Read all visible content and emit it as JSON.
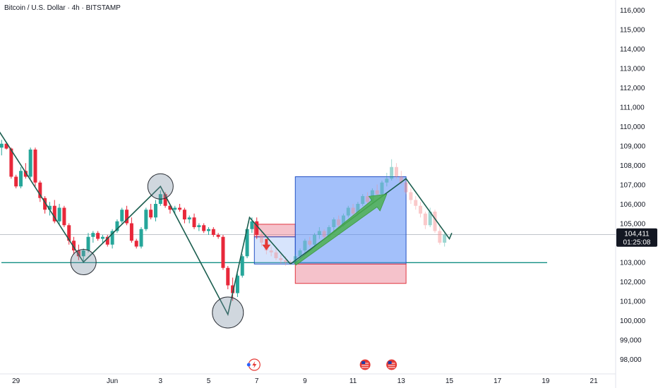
{
  "title": "Bitcoin / U.S. Dollar · 4h · BITSTAMP",
  "chart_data": {
    "type": "candlestick",
    "symbol": "BTC/USD",
    "timeframe": "4h",
    "y_ticks": [
      98000,
      99000,
      100000,
      101000,
      102000,
      103000,
      104000,
      105000,
      106000,
      107000,
      108000,
      109000,
      110000,
      111000,
      112000,
      113000,
      114000,
      115000,
      116000
    ],
    "y_tick_labels": [
      "98,000",
      "99,000",
      "100,000",
      "101,000",
      "102,000",
      "103,000",
      "104,000",
      "105,000",
      "106,000",
      "107,000",
      "108,000",
      "109,000",
      "110,000",
      "111,000",
      "112,000",
      "113,000",
      "114,000",
      "115,000",
      "116,000"
    ],
    "x_tick_labels": [
      "29",
      "Jun",
      "3",
      "5",
      "7",
      "9",
      "11",
      "13",
      "15",
      "17",
      "19",
      "21"
    ],
    "x_tick_days": [
      -3,
      1,
      3,
      5,
      7,
      9,
      11,
      13,
      15,
      17,
      19,
      21
    ],
    "current_price": "104,411",
    "countdown": "01:25:08",
    "support_level": 102970,
    "colors": {
      "up": "#26a69a",
      "down": "#ef5350",
      "down_dark": "#d32f2f",
      "pattern": "#1b5e4f",
      "accent": "#2962ff"
    },
    "candles": [
      [
        -4.2,
        110000,
        110700,
        109800,
        110400
      ],
      [
        -4.0,
        110400,
        110450,
        109500,
        109700
      ],
      [
        -3.8,
        109700,
        109800,
        108600,
        108900
      ],
      [
        -3.6,
        108900,
        109300,
        108500,
        109100
      ],
      [
        -3.4,
        109100,
        109200,
        108800,
        108850
      ],
      [
        -3.2,
        108850,
        108900,
        107300,
        107400
      ],
      [
        -3.0,
        107400,
        107500,
        106800,
        106900
      ],
      [
        -2.8,
        106900,
        107900,
        106800,
        107700
      ],
      [
        -2.6,
        107700,
        108100,
        107300,
        107400
      ],
      [
        -2.4,
        107400,
        108900,
        107300,
        108800
      ],
      [
        -2.2,
        108800,
        108900,
        106900,
        107100
      ],
      [
        -2.0,
        107100,
        107200,
        106100,
        106300
      ],
      [
        -1.8,
        106300,
        106400,
        105500,
        105700
      ],
      [
        -1.6,
        105700,
        106100,
        105400,
        105900
      ],
      [
        -1.4,
        105900,
        106200,
        105000,
        105100
      ],
      [
        -1.2,
        105100,
        106000,
        104900,
        105800
      ],
      [
        -1.0,
        105800,
        105900,
        104800,
        104900
      ],
      [
        -0.8,
        104900,
        105000,
        103900,
        104100
      ],
      [
        -0.6,
        104100,
        104300,
        103400,
        103600
      ],
      [
        -0.4,
        103600,
        103900,
        103100,
        103300
      ],
      [
        -0.2,
        103300,
        103700,
        103000,
        103600
      ],
      [
        0.0,
        103600,
        104500,
        103500,
        104300
      ],
      [
        0.2,
        104300,
        104600,
        104000,
        104500
      ],
      [
        0.4,
        104500,
        104600,
        104100,
        104200
      ],
      [
        0.6,
        104200,
        104400,
        104000,
        104300
      ],
      [
        0.8,
        104300,
        104400,
        103800,
        103900
      ],
      [
        1.0,
        103900,
        104700,
        103700,
        104600
      ],
      [
        1.2,
        104600,
        105200,
        104500,
        105100
      ],
      [
        1.4,
        105100,
        105800,
        105000,
        105700
      ],
      [
        1.6,
        105700,
        105900,
        104900,
        105000
      ],
      [
        1.8,
        105000,
        105300,
        104000,
        104100
      ],
      [
        2.0,
        104100,
        104200,
        103700,
        103800
      ],
      [
        2.2,
        103800,
        104800,
        103700,
        104700
      ],
      [
        2.4,
        104700,
        105800,
        104600,
        105700
      ],
      [
        2.6,
        105700,
        106000,
        105200,
        105300
      ],
      [
        2.8,
        105300,
        106200,
        105100,
        106000
      ],
      [
        3.0,
        106000,
        106700,
        105900,
        106500
      ],
      [
        3.2,
        106500,
        106600,
        105800,
        105900
      ],
      [
        3.4,
        105900,
        106000,
        105500,
        105700
      ],
      [
        3.6,
        105700,
        105900,
        105500,
        105800
      ],
      [
        3.8,
        105800,
        106000,
        105600,
        105700
      ],
      [
        4.0,
        105700,
        105800,
        105000,
        105200
      ],
      [
        4.2,
        105200,
        105400,
        105000,
        105300
      ],
      [
        4.4,
        105300,
        105500,
        104700,
        104800
      ],
      [
        4.6,
        104800,
        105000,
        104600,
        104900
      ],
      [
        4.8,
        104900,
        105000,
        104500,
        104600
      ],
      [
        5.0,
        104600,
        104800,
        104400,
        104700
      ],
      [
        5.2,
        104700,
        104800,
        104300,
        104400
      ],
      [
        5.4,
        104400,
        104500,
        104200,
        104300
      ],
      [
        5.6,
        104300,
        104400,
        102600,
        102700
      ],
      [
        5.8,
        102700,
        102800,
        101600,
        101800
      ],
      [
        6.0,
        101800,
        102200,
        101000,
        101400
      ],
      [
        6.2,
        101400,
        102400,
        101200,
        102300
      ],
      [
        6.4,
        102300,
        103400,
        102200,
        103300
      ],
      [
        6.6,
        103300,
        104800,
        103200,
        104700
      ],
      [
        6.8,
        104700,
        105300,
        104500,
        105100
      ],
      [
        7.0,
        105100,
        105300,
        104200,
        104400
      ]
    ],
    "projected_candles": [
      [
        7.2,
        104400,
        104600,
        103800,
        104000
      ],
      [
        7.4,
        104000,
        104200,
        103400,
        103600
      ],
      [
        7.6,
        103600,
        103800,
        103300,
        103500
      ],
      [
        7.8,
        103500,
        103700,
        103100,
        103200
      ],
      [
        8.0,
        103200,
        103400,
        102900,
        103100
      ],
      [
        8.2,
        103100,
        103300,
        102800,
        103000
      ],
      [
        8.4,
        103000,
        103100,
        102850,
        102950
      ],
      [
        8.6,
        102950,
        103400,
        102900,
        103300
      ],
      [
        8.8,
        103300,
        103700,
        103200,
        103600
      ],
      [
        9.0,
        103600,
        104200,
        103500,
        104100
      ],
      [
        9.2,
        104100,
        104300,
        103800,
        103900
      ],
      [
        9.4,
        103900,
        104500,
        103800,
        104400
      ],
      [
        9.6,
        104400,
        104800,
        104200,
        104600
      ],
      [
        9.8,
        104600,
        104700,
        104100,
        104300
      ],
      [
        10.0,
        104300,
        104900,
        104200,
        104800
      ],
      [
        10.2,
        104800,
        105300,
        104600,
        105200
      ],
      [
        10.4,
        105200,
        105400,
        104800,
        104900
      ],
      [
        10.6,
        104900,
        105500,
        104800,
        105400
      ],
      [
        10.8,
        105400,
        105900,
        105300,
        105800
      ],
      [
        11.0,
        105800,
        106000,
        105400,
        105500
      ],
      [
        11.2,
        105500,
        106100,
        105400,
        106000
      ],
      [
        11.4,
        106000,
        106500,
        105900,
        106400
      ],
      [
        11.6,
        106400,
        106600,
        106000,
        106100
      ],
      [
        11.8,
        106100,
        106800,
        106000,
        106700
      ],
      [
        12.0,
        106700,
        107000,
        106400,
        106500
      ],
      [
        12.2,
        106500,
        107200,
        106400,
        107100
      ],
      [
        12.4,
        107100,
        107600,
        106900,
        107300
      ],
      [
        12.6,
        107300,
        108300,
        107200,
        107900
      ],
      [
        12.8,
        107900,
        108100,
        107300,
        107400
      ],
      [
        13.0,
        107400,
        107700,
        107000,
        107100
      ],
      [
        13.2,
        107100,
        107300,
        106500,
        106600
      ],
      [
        13.4,
        106600,
        106800,
        106000,
        106200
      ],
      [
        13.6,
        106200,
        106400,
        105700,
        105900
      ],
      [
        13.8,
        105900,
        106100,
        105300,
        105500
      ],
      [
        14.0,
        105500,
        105600,
        104700,
        104900
      ],
      [
        14.2,
        104900,
        105800,
        104800,
        105600
      ],
      [
        14.4,
        105600,
        105700,
        104500,
        104600
      ],
      [
        14.6,
        104600,
        104900,
        103900,
        104000
      ],
      [
        14.8,
        104000,
        104500,
        103800,
        104411
      ]
    ],
    "zigzag_left": [
      [
        -4.2,
        110700
      ],
      [
        -0.2,
        103000
      ],
      [
        3.0,
        106900
      ],
      [
        5.8,
        100300
      ],
      [
        6.7,
        105300
      ],
      [
        8.4,
        102900
      ]
    ],
    "zigzag_right": [
      [
        8.4,
        102900
      ],
      [
        13.2,
        107300
      ],
      [
        15.0,
        104200
      ],
      [
        15.1,
        104500
      ]
    ],
    "circles": [
      {
        "day": -0.2,
        "price": 103000
      },
      {
        "day": 3.0,
        "price": 106900
      },
      {
        "day": 5.8,
        "price": 100400
      }
    ],
    "boxes": [
      {
        "name": "red-zone-upper",
        "day0": 6.9,
        "day1": 8.6,
        "p0": 104950,
        "p1": 104300
      },
      {
        "name": "blue-zone-small",
        "day0": 6.9,
        "day1": 8.6,
        "p0": 104300,
        "p1": 102900
      },
      {
        "name": "blue-zone-large",
        "day0": 8.6,
        "day1": 13.2,
        "p0": 107400,
        "p1": 102900
      },
      {
        "name": "red-zone-lower",
        "day0": 8.6,
        "day1": 13.2,
        "p0": 102900,
        "p1": 101900
      }
    ],
    "green_arrow": {
      "from": [
        8.6,
        102900
      ],
      "to": [
        12.4,
        106500
      ]
    },
    "red_arrow": {
      "day": 7.4,
      "price": 103900
    },
    "event_markers": [
      {
        "name": "lightning-event-icon",
        "day": 6.9
      },
      {
        "name": "us-flag-event-icon",
        "day": 11.5
      },
      {
        "name": "us-flag-event-icon",
        "day": 12.6
      }
    ]
  }
}
